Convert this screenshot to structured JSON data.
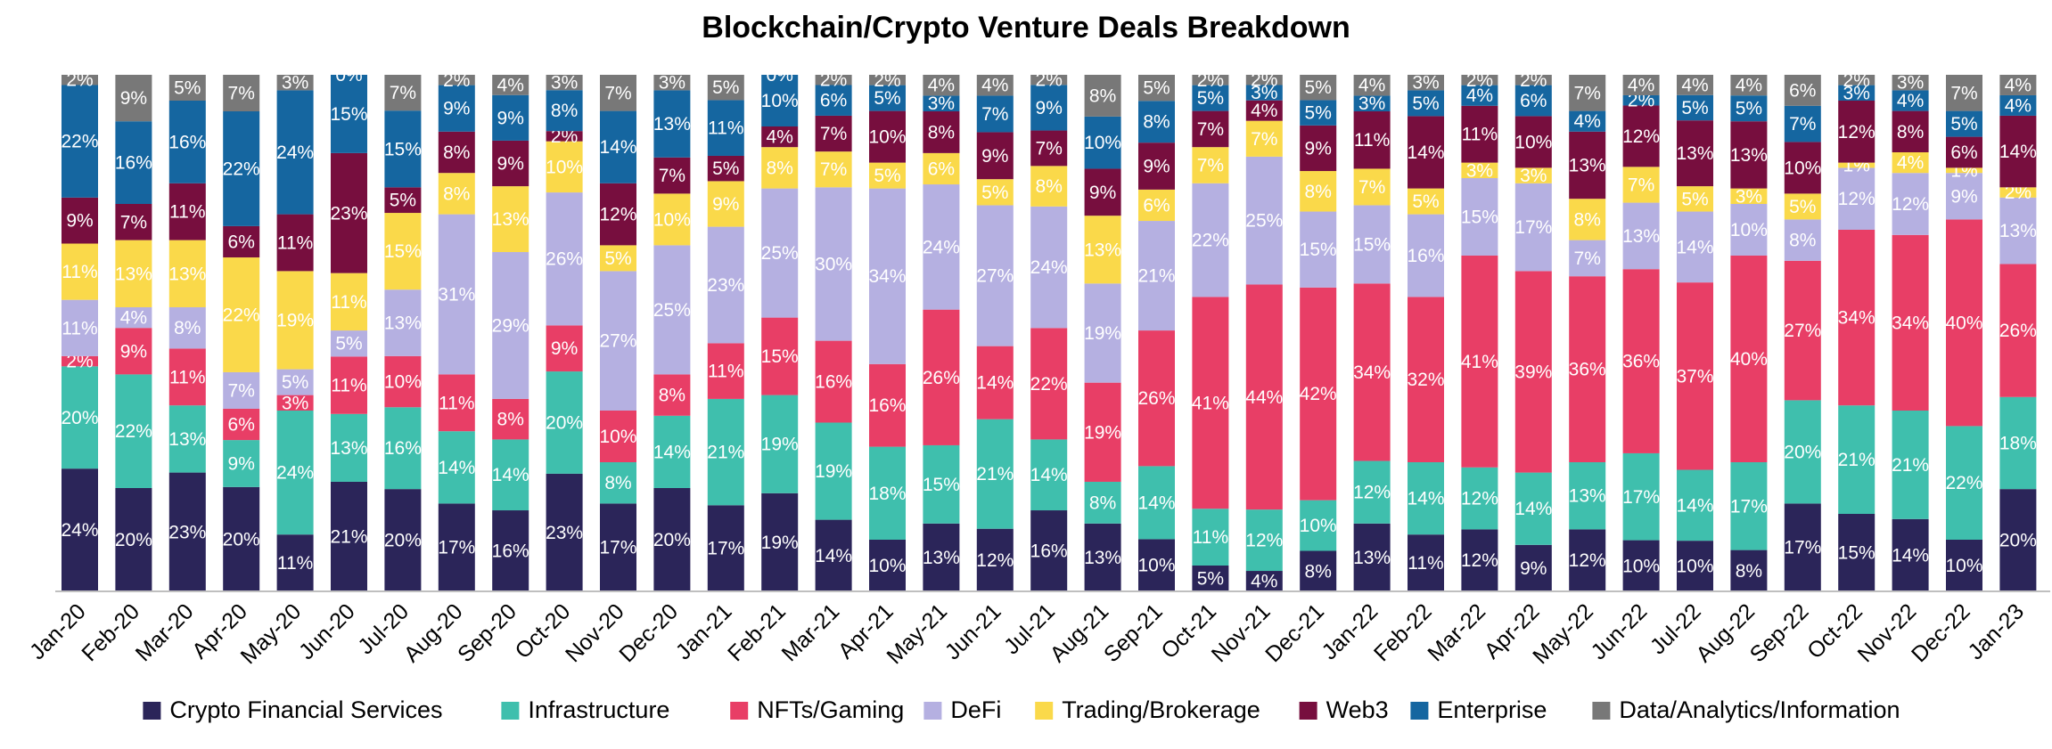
{
  "chart_data": {
    "type": "bar",
    "stacked": true,
    "percent": true,
    "title": "Blockchain/Crypto Venture Deals Breakdown",
    "xlabel": "",
    "ylabel": "",
    "ylim": [
      0,
      100
    ],
    "grid": false,
    "legend": "bottom",
    "categories": [
      "Jan-20",
      "Feb-20",
      "Mar-20",
      "Apr-20",
      "May-20",
      "Jun-20",
      "Jul-20",
      "Aug-20",
      "Sep-20",
      "Oct-20",
      "Nov-20",
      "Dec-20",
      "Jan-21",
      "Feb-21",
      "Mar-21",
      "Apr-21",
      "May-21",
      "Jun-21",
      "Jul-21",
      "Aug-21",
      "Sep-21",
      "Oct-21",
      "Nov-21",
      "Dec-21",
      "Jan-22",
      "Feb-22",
      "Mar-22",
      "Apr-22",
      "May-22",
      "Jun-22",
      "Jul-22",
      "Aug-22",
      "Sep-22",
      "Oct-22",
      "Nov-22",
      "Dec-22",
      "Jan-23"
    ],
    "series": [
      {
        "name": "Crypto Financial Services",
        "color": "#2b2559",
        "values": [
          24,
          20,
          23,
          20,
          11,
          21,
          20,
          17,
          16,
          23,
          17,
          20,
          17,
          19,
          14,
          10,
          13,
          12,
          16,
          13,
          10,
          5,
          4,
          8,
          13,
          11,
          12,
          9,
          12,
          10,
          10,
          8,
          17,
          15,
          14,
          10,
          20
        ]
      },
      {
        "name": "Infrastructure",
        "color": "#3fbfad",
        "values": [
          20,
          22,
          13,
          9,
          24,
          13,
          16,
          14,
          14,
          20,
          8,
          14,
          21,
          19,
          19,
          18,
          15,
          21,
          14,
          8,
          14,
          11,
          12,
          10,
          12,
          14,
          12,
          14,
          13,
          17,
          14,
          17,
          20,
          21,
          21,
          22,
          18
        ]
      },
      {
        "name": "NFTs/Gaming",
        "color": "#e83e66",
        "values": [
          2,
          9,
          11,
          6,
          3,
          11,
          10,
          11,
          8,
          9,
          10,
          8,
          11,
          15,
          16,
          16,
          26,
          14,
          22,
          19,
          26,
          41,
          44,
          42,
          34,
          32,
          41,
          39,
          36,
          36,
          37,
          40,
          27,
          34,
          34,
          40,
          26
        ]
      },
      {
        "name": "DeFi",
        "color": "#b5b0e1",
        "values": [
          11,
          4,
          8,
          7,
          5,
          5,
          13,
          31,
          29,
          26,
          27,
          25,
          23,
          25,
          30,
          34,
          24,
          27,
          24,
          19,
          21,
          22,
          25,
          15,
          15,
          16,
          15,
          17,
          7,
          13,
          14,
          10,
          8,
          12,
          12,
          9,
          13
        ]
      },
      {
        "name": "Trading/Brokerage",
        "color": "#fad94a",
        "values": [
          11,
          13,
          13,
          22,
          19,
          11,
          15,
          8,
          13,
          10,
          5,
          10,
          9,
          8,
          7,
          5,
          6,
          5,
          8,
          13,
          6,
          7,
          7,
          8,
          7,
          5,
          3,
          3,
          8,
          7,
          5,
          3,
          5,
          1,
          4,
          1,
          2
        ]
      },
      {
        "name": "Web3",
        "color": "#770e3e",
        "values": [
          9,
          7,
          11,
          6,
          11,
          23,
          5,
          8,
          9,
          2,
          12,
          7,
          5,
          4,
          7,
          10,
          8,
          9,
          7,
          9,
          9,
          7,
          4,
          9,
          11,
          14,
          11,
          10,
          13,
          12,
          13,
          13,
          10,
          12,
          8,
          6,
          14
        ]
      },
      {
        "name": "Enterprise",
        "color": "#1566a0",
        "values": [
          22,
          16,
          16,
          22,
          24,
          15,
          15,
          9,
          9,
          8,
          14,
          13,
          11,
          10,
          6,
          5,
          3,
          7,
          9,
          10,
          8,
          5,
          3,
          5,
          3,
          5,
          4,
          6,
          4,
          2,
          5,
          5,
          7,
          3,
          4,
          5,
          4
        ]
      },
      {
        "name": "Data/Analytics/Information",
        "color": "#787878",
        "values": [
          2,
          9,
          5,
          7,
          3,
          0,
          7,
          2,
          4,
          3,
          7,
          3,
          5,
          0,
          2,
          2,
          4,
          4,
          2,
          8,
          5,
          2,
          2,
          5,
          4,
          3,
          2,
          2,
          7,
          4,
          4,
          4,
          6,
          2,
          3,
          7,
          4
        ]
      }
    ]
  }
}
